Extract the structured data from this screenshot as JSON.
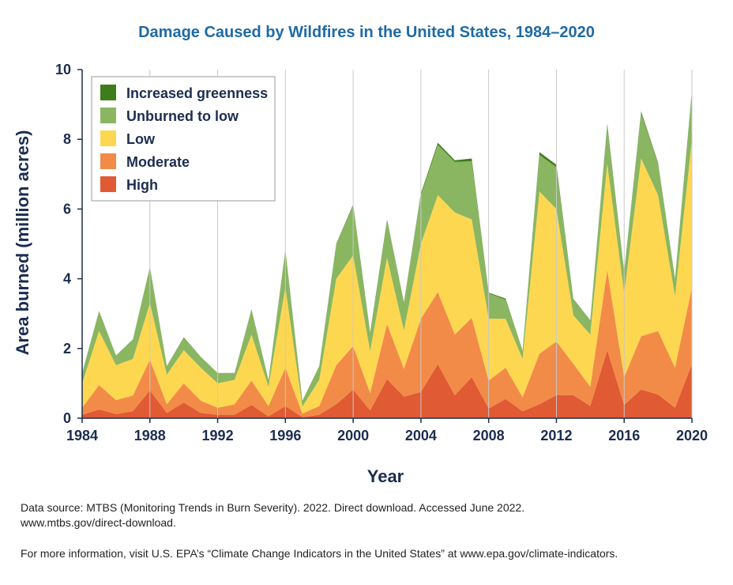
{
  "chart_data": {
    "type": "area",
    "stacked": true,
    "title": "Damage Caused by Wildfires in the United States, 1984–2020",
    "xlabel": "Year",
    "ylabel": "Area burned (million acres)",
    "xlim": [
      1984,
      2020
    ],
    "ylim": [
      0,
      10
    ],
    "x_ticks": [
      1984,
      1988,
      1992,
      1996,
      2000,
      2004,
      2008,
      2012,
      2016,
      2020
    ],
    "y_ticks": [
      0,
      2,
      4,
      6,
      8,
      10
    ],
    "legend_position": "top-left",
    "x": [
      1984,
      1985,
      1986,
      1987,
      1988,
      1989,
      1990,
      1991,
      1992,
      1993,
      1994,
      1995,
      1996,
      1997,
      1998,
      1999,
      2000,
      2001,
      2002,
      2003,
      2004,
      2005,
      2006,
      2007,
      2008,
      2009,
      2010,
      2011,
      2012,
      2013,
      2014,
      2015,
      2016,
      2017,
      2018,
      2019,
      2020
    ],
    "series": [
      {
        "name": "High",
        "color": "#e05a33",
        "values": [
          0.1,
          0.25,
          0.12,
          0.2,
          0.8,
          0.15,
          0.45,
          0.15,
          0.1,
          0.1,
          0.38,
          0.05,
          0.35,
          0.03,
          0.1,
          0.4,
          0.82,
          0.22,
          1.12,
          0.62,
          0.75,
          1.55,
          0.65,
          1.18,
          0.28,
          0.55,
          0.2,
          0.4,
          0.66,
          0.66,
          0.35,
          1.95,
          0.38,
          0.82,
          0.68,
          0.3,
          1.55
        ]
      },
      {
        "name": "Moderate",
        "color": "#f28b48",
        "values": [
          0.2,
          0.7,
          0.4,
          0.45,
          0.88,
          0.25,
          0.55,
          0.35,
          0.2,
          0.3,
          0.7,
          0.3,
          1.1,
          0.1,
          0.25,
          1.12,
          1.25,
          0.5,
          1.58,
          0.8,
          2.1,
          2.07,
          1.75,
          1.7,
          0.8,
          0.9,
          0.4,
          1.45,
          1.54,
          0.9,
          0.55,
          2.3,
          0.8,
          1.53,
          1.82,
          1.15,
          2.2
        ]
      },
      {
        "name": "Low",
        "color": "#fed750",
        "values": [
          0.7,
          1.55,
          1.0,
          1.05,
          1.62,
          0.85,
          0.95,
          0.95,
          0.7,
          0.7,
          1.32,
          0.55,
          2.3,
          0.2,
          0.75,
          2.48,
          2.6,
          1.2,
          1.9,
          1.1,
          2.15,
          2.78,
          3.5,
          2.82,
          1.77,
          1.4,
          1.1,
          4.65,
          3.8,
          1.39,
          1.5,
          3.05,
          2.4,
          5.1,
          3.9,
          2.05,
          4.25
        ]
      },
      {
        "name": "Unburned to low",
        "color": "#8ab662",
        "values": [
          0.3,
          0.55,
          0.28,
          0.55,
          1.0,
          0.25,
          0.35,
          0.3,
          0.3,
          0.2,
          0.7,
          0.2,
          1.05,
          0.17,
          0.4,
          0.98,
          1.43,
          0.53,
          1.07,
          0.78,
          1.4,
          1.44,
          1.45,
          1.67,
          0.73,
          0.55,
          0.23,
          1.05,
          1.2,
          0.45,
          0.4,
          1.1,
          0.6,
          1.3,
          0.9,
          0.5,
          1.35
        ]
      },
      {
        "name": "Increased greenness",
        "color": "#3f7d1c",
        "values": [
          0,
          0.02,
          0,
          0.01,
          0.03,
          0,
          0.02,
          0.01,
          0,
          0,
          0.02,
          0,
          0.03,
          0,
          0,
          0.02,
          0.03,
          0.01,
          0.03,
          0.02,
          0.05,
          0.06,
          0.05,
          0.08,
          0.02,
          0.03,
          0.01,
          0.08,
          0.07,
          0.02,
          0.01,
          0.05,
          0.02,
          0.05,
          0.03,
          0.01,
          0.05
        ]
      }
    ],
    "legend_order": [
      "Increased greenness",
      "Unburned to low",
      "Low",
      "Moderate",
      "High"
    ]
  },
  "footer": {
    "source_line1": "Data source: MTBS (Monitoring Trends in Burn Severity). 2022. Direct download. Accessed June 2022.",
    "source_line2": "www.mtbs.gov/direct-download.",
    "more_info": "For more information, visit U.S. EPA’s “Climate Change Indicators in the United States” at www.epa.gov/climate-indicators."
  }
}
